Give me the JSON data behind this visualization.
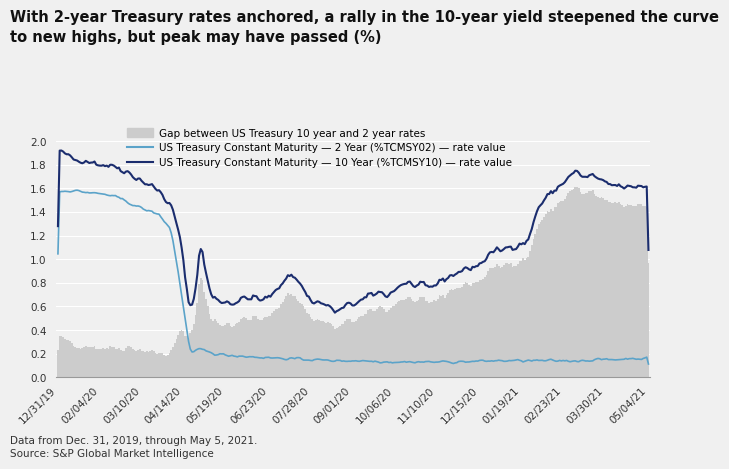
{
  "title_line1": "With 2-year Treasury rates anchored, a rally in the 10-year yield steepened the curve",
  "title_line2": "to new highs, but peak may have passed (%)",
  "footnote1": "Data from Dec. 31, 2019, through May 5, 2021.",
  "footnote2": "Source: S&P Global Market Intelligence",
  "legend_gap": "Gap between US Treasury 10 year and 2 year rates",
  "legend_2y": "US Treasury Constant Maturity — 2 Year (%TCMSY02) — rate value",
  "legend_10y": "US Treasury Constant Maturity — 10 Year (%TCMSY10) — rate value",
  "color_2y": "#5ba3c9",
  "color_10y": "#1b2d6e",
  "color_bar": "#cccccc",
  "background_color": "#f0f0f0",
  "plot_bg": "#f0f0f0",
  "ylim": [
    0.0,
    2.0
  ],
  "yticks": [
    0.0,
    0.2,
    0.4,
    0.6,
    0.8,
    1.0,
    1.2,
    1.4,
    1.6,
    1.8,
    2.0
  ],
  "xtick_labels": [
    "12/31/19",
    "02/04/20",
    "03/10/20",
    "04/14/20",
    "05/19/20",
    "06/23/20",
    "07/28/20",
    "09/01/20",
    "10/06/20",
    "11/10/20",
    "12/15/20",
    "01/19/21",
    "02/23/21",
    "03/30/21",
    "05/04/21"
  ],
  "title_fontsize": 10.5,
  "legend_fontsize": 7.5,
  "tick_fontsize": 7.5,
  "footnote_fontsize": 7.5
}
